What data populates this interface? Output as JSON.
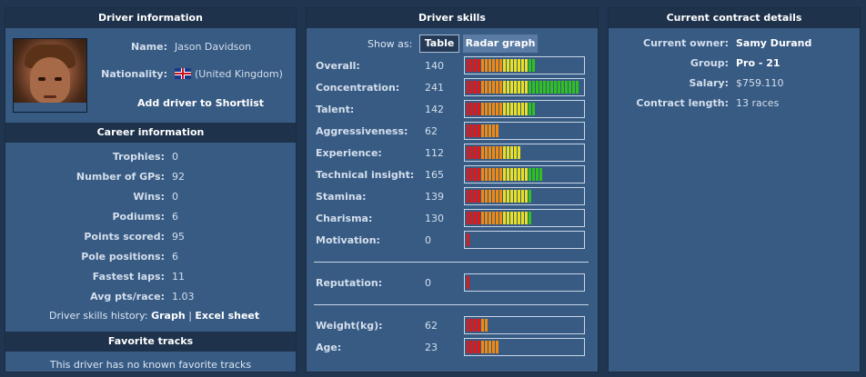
{
  "driver_info": {
    "title": "Driver information",
    "name_label": "Name:",
    "name": "Jason Davidson",
    "nationality_label": "Nationality:",
    "nationality": "(United Kingdom)",
    "shortlist_link": "Add driver to Shortlist"
  },
  "career": {
    "title": "Career information",
    "rows": [
      {
        "label": "Trophies:",
        "value": "0"
      },
      {
        "label": "Number of GPs:",
        "value": "92"
      },
      {
        "label": "Wins:",
        "value": "0"
      },
      {
        "label": "Podiums:",
        "value": "6"
      },
      {
        "label": "Points scored:",
        "value": "95"
      },
      {
        "label": "Pole positions:",
        "value": "6"
      },
      {
        "label": "Fastest laps:",
        "value": "11"
      },
      {
        "label": "Avg pts/race:",
        "value": "1.03"
      }
    ],
    "history_label": "Driver skills history:",
    "history_graph": "Graph",
    "history_sep": "|",
    "history_excel": "Excel sheet"
  },
  "favorite_tracks": {
    "title": "Favorite tracks",
    "text": "This driver has no known favorite tracks"
  },
  "skills": {
    "title": "Driver skills",
    "show_as_label": "Show as:",
    "table_button": "Table",
    "radar_button": "Radar graph",
    "rows": [
      {
        "label": "Overall:",
        "value": "140",
        "segments": 19
      },
      {
        "label": "Concentration:",
        "value": "241",
        "segments": 31
      },
      {
        "label": "Talent:",
        "value": "142",
        "segments": 19
      },
      {
        "label": "Aggressiveness:",
        "value": "62",
        "segments": 9
      },
      {
        "label": "Experience:",
        "value": "112",
        "segments": 15
      },
      {
        "label": "Technical insight:",
        "value": "165",
        "segments": 21
      },
      {
        "label": "Stamina:",
        "value": "139",
        "segments": 18
      },
      {
        "label": "Charisma:",
        "value": "130",
        "segments": 18
      },
      {
        "label": "Motivation:",
        "value": "0",
        "segments": 1
      }
    ],
    "reputation": {
      "label": "Reputation:",
      "value": "0",
      "segments": 1
    },
    "physical": [
      {
        "label": "Weight(kg):",
        "value": "62",
        "segments": 6
      },
      {
        "label": "Age:",
        "value": "23",
        "segments": 9
      }
    ]
  },
  "contract": {
    "title": "Current contract details",
    "rows": [
      {
        "label": "Current owner:",
        "value": "Samy Durand",
        "bold": true
      },
      {
        "label": "Group:",
        "value": "Pro - 21",
        "bold": true
      },
      {
        "label": "Salary:",
        "value": "$759.110",
        "bold": false
      },
      {
        "label": "Contract length:",
        "value": "13 races",
        "bold": false
      }
    ]
  },
  "colors": {
    "background": "#1f3550",
    "panel": "#385b84",
    "header": "#1e324b",
    "bar_red": "#e01818",
    "bar_orange": "#f08a10",
    "bar_yellow": "#e8e020",
    "bar_green": "#30c020"
  }
}
